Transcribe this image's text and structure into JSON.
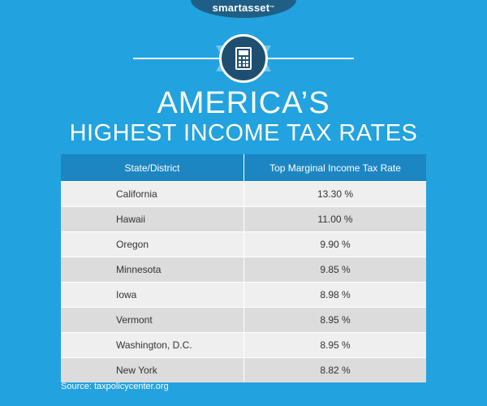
{
  "brand": {
    "logo_text": "smartasset",
    "logo_mark": "™"
  },
  "emblem": {
    "icon": "calculator-icon"
  },
  "title": {
    "line1": "AMERICA’S",
    "line2": "HIGHEST INCOME TAX RATES"
  },
  "table": {
    "headers": [
      "State/District",
      "Top Marginal Income Tax Rate"
    ],
    "rows": [
      {
        "state": "California",
        "rate": "13.30 %"
      },
      {
        "state": "Hawaii",
        "rate": "11.00 %"
      },
      {
        "state": "Oregon",
        "rate": "9.90 %"
      },
      {
        "state": "Minnesota",
        "rate": "9.85 %"
      },
      {
        "state": "Iowa",
        "rate": "8.98 %"
      },
      {
        "state": "Vermont",
        "rate": "8.95 %"
      },
      {
        "state": "Washington, D.C.",
        "rate": "8.95 %"
      },
      {
        "state": "New York",
        "rate": "8.82 %"
      }
    ]
  },
  "source": "Source: taxpolicycenter.org",
  "colors": {
    "background": "#22a2de",
    "header": "#1b86c2",
    "row_light": "#efefef",
    "row_dark": "#dcdcdc",
    "emblem": "#1f4f70"
  }
}
